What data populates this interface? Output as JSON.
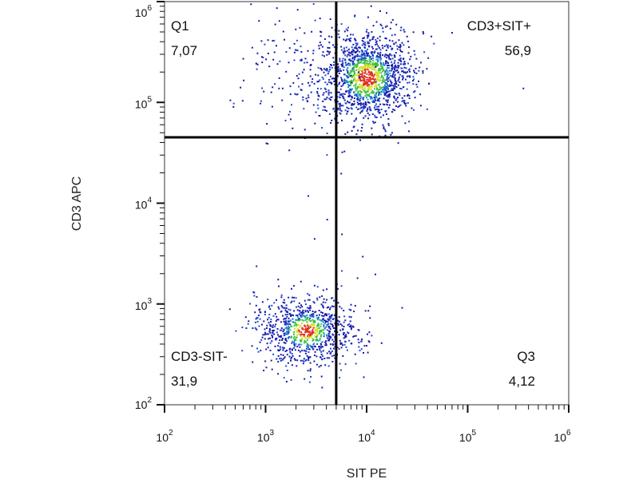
{
  "chart_data": {
    "type": "scatter",
    "subtype": "flow-cytometry-dot-plot",
    "xlabel": "SIT PE",
    "ylabel": "CD3 APC",
    "x_scale": "log",
    "y_scale": "log",
    "xlim": [
      100,
      1000000
    ],
    "ylim": [
      100,
      1000000
    ],
    "x_ticks": [
      {
        "base": "10",
        "exp": "2",
        "value": 100
      },
      {
        "base": "10",
        "exp": "3",
        "value": 1000
      },
      {
        "base": "10",
        "exp": "4",
        "value": 10000
      },
      {
        "base": "10",
        "exp": "5",
        "value": 100000
      },
      {
        "base": "10",
        "exp": "6",
        "value": 1000000
      }
    ],
    "y_ticks": [
      {
        "base": "10",
        "exp": "2",
        "value": 100
      },
      {
        "base": "10",
        "exp": "3",
        "value": 1000
      },
      {
        "base": "10",
        "exp": "4",
        "value": 10000
      },
      {
        "base": "10",
        "exp": "5",
        "value": 100000
      },
      {
        "base": "10",
        "exp": "6",
        "value": 1000000
      }
    ],
    "gate": {
      "x": 5000,
      "y": 45000
    },
    "quadrants": [
      {
        "id": "q1",
        "label": "Q1",
        "value": "7,07",
        "position": "top-left"
      },
      {
        "id": "q2",
        "label": "CD3+SIT+",
        "value": "56,9",
        "position": "top-right"
      },
      {
        "id": "q3",
        "label": "Q3",
        "value": "4,12",
        "position": "bottom-right"
      },
      {
        "id": "q4",
        "label": "CD3-SIT-",
        "value": "31,9",
        "position": "bottom-left"
      }
    ],
    "populations": [
      {
        "name": "upper-cluster",
        "center_x": 10000,
        "center_y": 180000,
        "spread_x_decades": 0.22,
        "spread_y_decades": 0.22,
        "density": "high"
      },
      {
        "name": "lower-cluster",
        "center_x": 2500,
        "center_y": 550,
        "spread_x_decades": 0.25,
        "spread_y_decades": 0.18,
        "density": "high"
      },
      {
        "name": "upper-left-scatter",
        "center_x": 3000,
        "center_y": 200000,
        "spread_x_decades": 0.35,
        "spread_y_decades": 0.3,
        "density": "low"
      }
    ],
    "color_scale": [
      "#1a1aa8",
      "#1f4fd0",
      "#1aa0c0",
      "#40c040",
      "#d0e030",
      "#e03020"
    ]
  }
}
